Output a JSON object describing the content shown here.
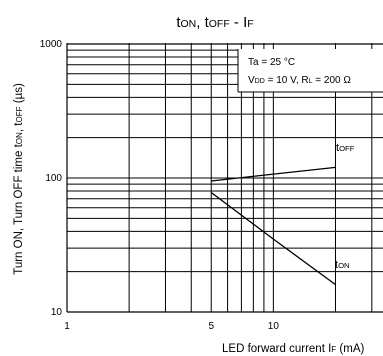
{
  "chart_data": {
    "type": "line",
    "title": {
      "base": "t",
      "sub1": "ON",
      "mid": ", t",
      "sub2": "OFF",
      "tail": " - I",
      "sub3": "F"
    },
    "xlabel": {
      "text": "LED forward current I",
      "sub": "F",
      "tail": " (mA)"
    },
    "ylabel": {
      "text": "Turn ON, Turn OFF time t",
      "sub1": "ON",
      "mid": ", t",
      "sub2": "OFF",
      "tail": " (µs)"
    },
    "x_scale": "log",
    "y_scale": "log",
    "xlim": [
      1,
      30
    ],
    "ylim": [
      10,
      1000
    ],
    "x_ticks": [
      1,
      5,
      10
    ],
    "x_tick_labels": [
      "1",
      "5",
      "10"
    ],
    "y_ticks": [
      10,
      100,
      1000
    ],
    "y_tick_labels": [
      "10",
      "100",
      "1000"
    ],
    "grid": true,
    "conditions": [
      {
        "text": "Ta = 25 °C"
      },
      {
        "p1": "V",
        "s1": "DD",
        "p2": " = 10 V, R",
        "s2": "L",
        "p3": " = 200 Ω"
      }
    ],
    "series": [
      {
        "name": "tOFF",
        "label": {
          "base": "t",
          "sub": "OFF"
        },
        "x": [
          5,
          10,
          20
        ],
        "y": [
          95,
          107,
          120
        ]
      },
      {
        "name": "tON",
        "label": {
          "base": "t",
          "sub": "ON"
        },
        "x": [
          5,
          10,
          20
        ],
        "y": [
          78,
          35,
          16
        ]
      }
    ],
    "colors": {
      "line": "#000000",
      "grid": "#000000",
      "background": "#ffffff"
    }
  }
}
